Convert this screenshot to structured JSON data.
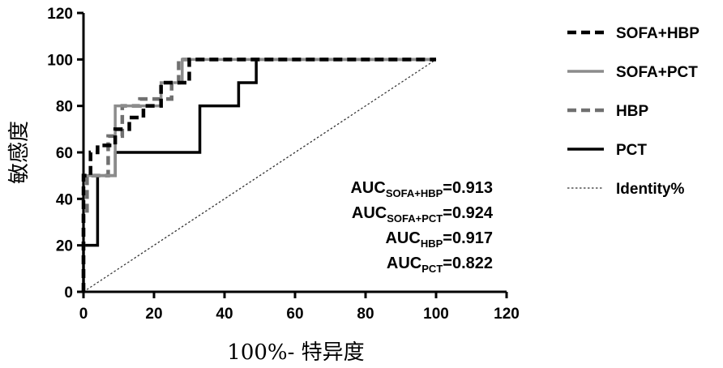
{
  "chart_data": {
    "type": "line",
    "title": "",
    "xlabel": "100%- 特异度",
    "ylabel": "敏感度",
    "xlim": [
      0,
      120
    ],
    "ylim": [
      0,
      120
    ],
    "xticks": [
      0,
      20,
      40,
      60,
      80,
      100,
      120
    ],
    "yticks": [
      0,
      20,
      40,
      60,
      80,
      100,
      120
    ],
    "grid": false,
    "legend_position": "right",
    "series": [
      {
        "name": "SOFA+HBP",
        "style": "dashed",
        "color": "#000000",
        "x": [
          0,
          0,
          2,
          2,
          4,
          4,
          9,
          9,
          13,
          13,
          17,
          17,
          22,
          22,
          30,
          30,
          100
        ],
        "y": [
          0,
          50,
          50,
          60,
          60,
          63,
          63,
          70,
          70,
          75,
          75,
          80,
          80,
          90,
          90,
          100,
          100
        ]
      },
      {
        "name": "SOFA+PCT",
        "style": "solid",
        "color": "#8c8c8c",
        "x": [
          0,
          0,
          9,
          9,
          22,
          22,
          28,
          28,
          100
        ],
        "y": [
          0,
          50,
          50,
          80,
          80,
          90,
          90,
          100,
          100
        ]
      },
      {
        "name": "HBP",
        "style": "dashed",
        "color": "#707070",
        "x": [
          0,
          0,
          1,
          1,
          7,
          7,
          11,
          11,
          16,
          16,
          25,
          25,
          27,
          27,
          100
        ],
        "y": [
          0,
          33,
          33,
          50,
          50,
          67,
          67,
          80,
          80,
          83,
          83,
          90,
          90,
          100,
          100
        ]
      },
      {
        "name": "PCT",
        "style": "solid",
        "color": "#000000",
        "x": [
          0,
          0,
          4,
          4,
          9,
          9,
          33,
          33,
          44,
          44,
          49,
          49,
          100
        ],
        "y": [
          0,
          20,
          20,
          50,
          50,
          60,
          60,
          80,
          80,
          90,
          90,
          100,
          100
        ]
      },
      {
        "name": "Identity%",
        "style": "dotted",
        "color": "#333333",
        "x": [
          0,
          100
        ],
        "y": [
          0,
          100
        ]
      }
    ],
    "annotations": [
      {
        "main": "AUC",
        "sub": "SOFA+HBP",
        "value": "=0.913"
      },
      {
        "main": "AUC",
        "sub": "SOFA+PCT",
        "value": "=0.924"
      },
      {
        "main": "AUC",
        "sub": "HBP",
        "value": "=0.917"
      },
      {
        "main": "AUC",
        "sub": "PCT",
        "value": "=0.822"
      }
    ]
  }
}
